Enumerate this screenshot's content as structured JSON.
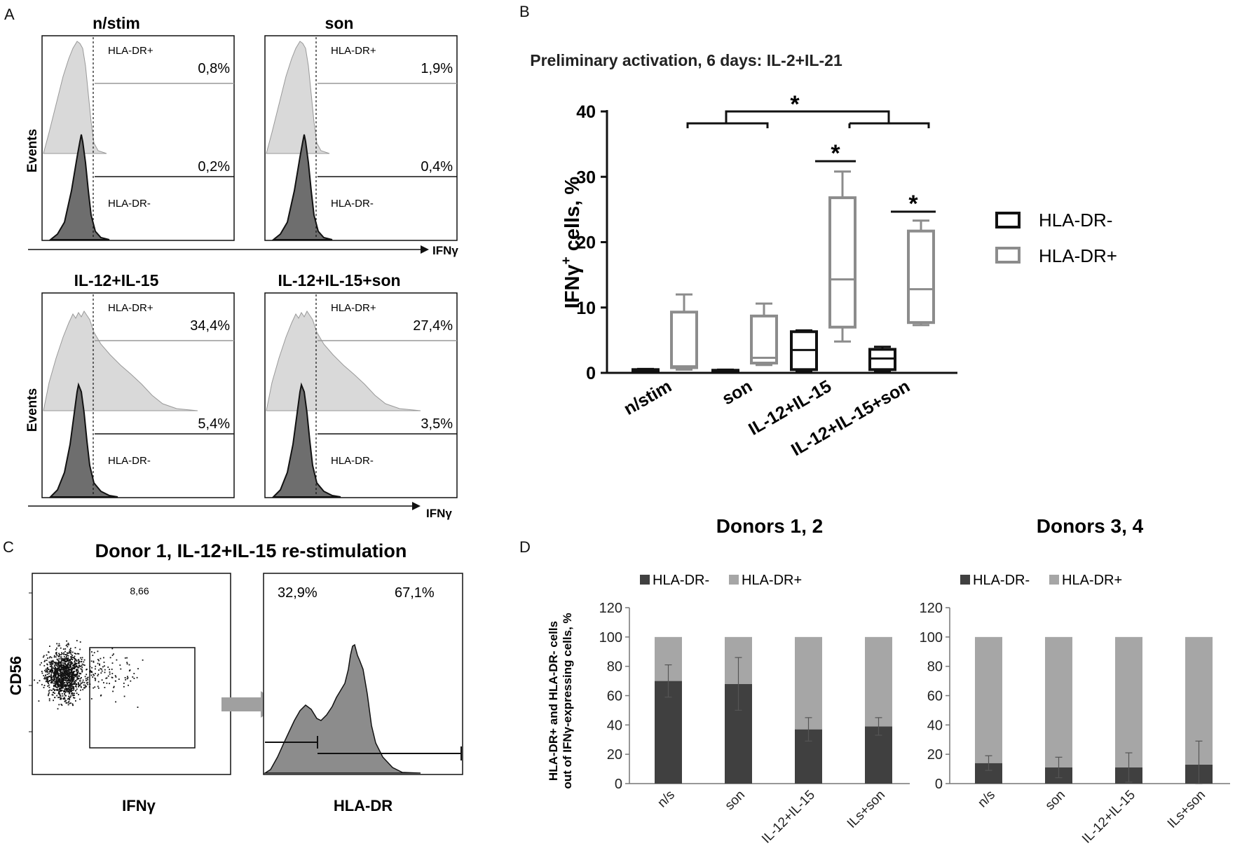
{
  "panels": {
    "A": {
      "letter": "A",
      "axis_events": "Events",
      "axis_ifn": "IFNγ",
      "hists": [
        {
          "title": "n/stim",
          "pos_label": "HLA-DR+",
          "neg_label": "HLA-DR-",
          "pos_pct": "0,8%",
          "neg_pct": "0,2%"
        },
        {
          "title": "son",
          "pos_label": "HLA-DR+",
          "neg_label": "HLA-DR-",
          "pos_pct": "1,9%",
          "neg_pct": "0,4%"
        },
        {
          "title": "IL-12+IL-15",
          "pos_label": "HLA-DR+",
          "neg_label": "HLA-DR-",
          "pos_pct": "34,4%",
          "neg_pct": "5,4%"
        },
        {
          "title": "IL-12+IL-15+son",
          "pos_label": "HLA-DR+",
          "neg_label": "HLA-DR-",
          "pos_pct": "27,4%",
          "neg_pct": "3,5%"
        }
      ]
    },
    "B": {
      "letter": "B",
      "sig_star": "*",
      "sup_plus": "+"
    },
    "C": {
      "letter": "C",
      "title": "Donor 1, IL-12+IL-15 re-stimulation",
      "ylabel": "CD56",
      "xlabel_dot": "IFNγ",
      "xlabel_hist": "HLA-DR",
      "gate_value": "8,66",
      "left_pct": "32,9%",
      "right_pct": "67,1%"
    },
    "D": {
      "letter": "D"
    }
  },
  "colors": {
    "dark_bar": "#404040",
    "light_bar": "#a6a6a6",
    "box_dr_minus": "#111111",
    "box_dr_plus": "#8c8c8c",
    "hist_light": "#d9d9d9",
    "hist_dark": "#6e6e6e"
  },
  "chart_data": [
    {
      "id": "B",
      "type": "box",
      "title": "Preliminary activation, 6 days: IL-2+IL-21",
      "ylabel": "IFNγ+ cells, %",
      "ylim": [
        0,
        40
      ],
      "yticks": [
        0,
        10,
        20,
        30,
        40
      ],
      "categories": [
        "n/stim",
        "son",
        "IL-12+IL-15",
        "IL-12+IL-15+son"
      ],
      "series": [
        {
          "name": "HLA-DR-",
          "boxes": [
            {
              "min": 0.2,
              "q1": 0.3,
              "median": 0.4,
              "q3": 0.5,
              "max": 0.6
            },
            {
              "min": 0.1,
              "q1": 0.2,
              "median": 0.3,
              "q3": 0.4,
              "max": 0.5
            },
            {
              "min": 0.3,
              "q1": 0.5,
              "median": 3.5,
              "q3": 6.3,
              "max": 6.5
            },
            {
              "min": 0.3,
              "q1": 0.5,
              "median": 2.2,
              "q3": 3.6,
              "max": 4.0
            }
          ]
        },
        {
          "name": "HLA-DR+",
          "boxes": [
            {
              "min": 0.5,
              "q1": 0.8,
              "median": 1.0,
              "q3": 9.3,
              "max": 12.0
            },
            {
              "min": 1.2,
              "q1": 1.5,
              "median": 2.3,
              "q3": 8.7,
              "max": 10.6
            },
            {
              "min": 4.8,
              "q1": 7.0,
              "median": 14.3,
              "q3": 26.8,
              "max": 30.8
            },
            {
              "min": 7.3,
              "q1": 7.7,
              "median": 12.8,
              "q3": 21.7,
              "max": 23.3
            }
          ]
        }
      ],
      "legend": [
        "HLA-DR-",
        "HLA-DR+"
      ]
    },
    {
      "id": "D1",
      "type": "stacked_bar",
      "title": "Donors 1, 2",
      "ylabel": "HLA-DR+ and HLA-DR- cells out of IFNγ-expressing cells, %",
      "ylabel_line1": "HLA-DR+ and HLA-DR- cells",
      "ylabel_line2": "out of IFNγ-expressing cells, %",
      "ylim": [
        0,
        120
      ],
      "yticks": [
        0,
        20,
        40,
        60,
        80,
        100,
        120
      ],
      "categories": [
        "n/s",
        "son",
        "IL-12+IL-15",
        "ILs+son"
      ],
      "series": [
        {
          "name": "HLA-DR-",
          "values": [
            70,
            68,
            37,
            39
          ],
          "err": [
            11,
            18,
            8,
            6
          ]
        },
        {
          "name": "HLA-DR+",
          "values": [
            30,
            32,
            63,
            61
          ]
        }
      ]
    },
    {
      "id": "D2",
      "type": "stacked_bar",
      "title": "Donors 3, 4",
      "ylim": [
        0,
        120
      ],
      "yticks": [
        0,
        20,
        40,
        60,
        80,
        100,
        120
      ],
      "categories": [
        "n/s",
        "son",
        "IL-12+IL-15",
        "ILs+son"
      ],
      "series": [
        {
          "name": "HLA-DR-",
          "values": [
            14,
            11,
            11,
            13
          ],
          "err": [
            5,
            7,
            10,
            16
          ]
        },
        {
          "name": "HLA-DR+",
          "values": [
            86,
            89,
            89,
            87
          ]
        }
      ]
    }
  ]
}
